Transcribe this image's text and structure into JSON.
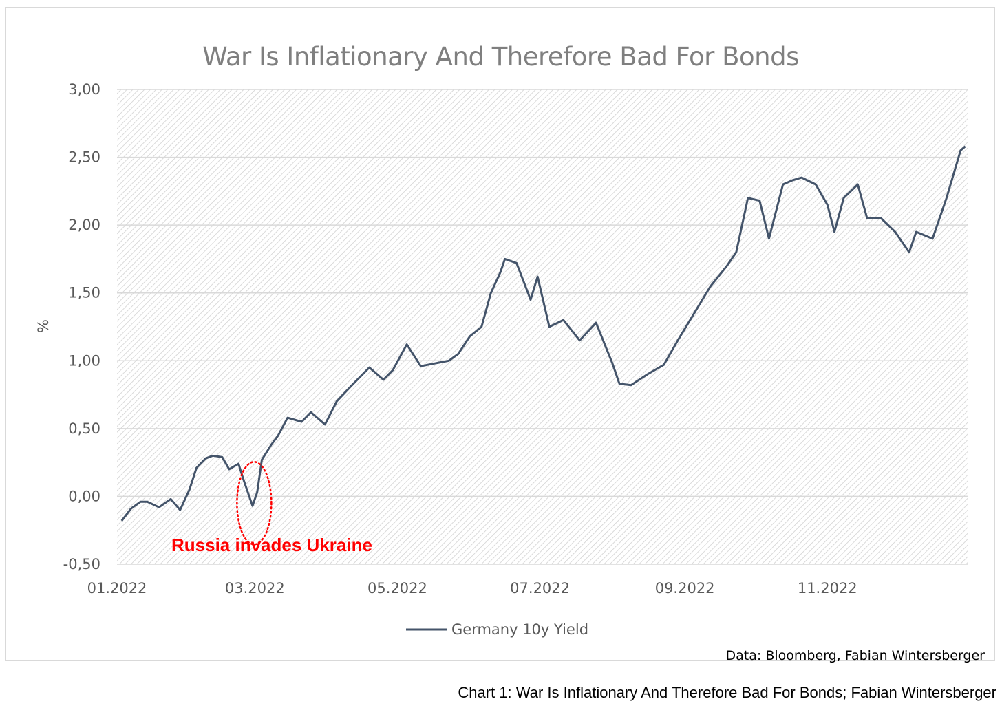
{
  "chart_data": {
    "type": "line",
    "title": "War Is Inflationary And Therefore Bad For Bonds",
    "ylabel": "%",
    "xlabel": "",
    "ylim": [
      -0.5,
      3.0
    ],
    "yticks": [
      "-0,50",
      "0,00",
      "0,50",
      "1,00",
      "1,50",
      "2,00",
      "2,50",
      "3,00"
    ],
    "ytick_values": [
      -0.5,
      0,
      0.5,
      1.0,
      1.5,
      2.0,
      2.5,
      3.0
    ],
    "xticks": [
      "01.2022",
      "03.2022",
      "05.2022",
      "07.2022",
      "09.2022",
      "11.2022"
    ],
    "grid": true,
    "legend_position": "bottom",
    "series": [
      {
        "name": "Germany 10y Yield",
        "color": "#44546a",
        "x": [
          "2022-01-03",
          "2022-01-07",
          "2022-01-11",
          "2022-01-14",
          "2022-01-19",
          "2022-01-24",
          "2022-01-28",
          "2022-02-01",
          "2022-02-04",
          "2022-02-08",
          "2022-02-11",
          "2022-02-15",
          "2022-02-18",
          "2022-02-22",
          "2022-02-24",
          "2022-02-28",
          "2022-03-02",
          "2022-03-04",
          "2022-03-08",
          "2022-03-11",
          "2022-03-15",
          "2022-03-21",
          "2022-03-25",
          "2022-03-31",
          "2022-04-05",
          "2022-04-11",
          "2022-04-19",
          "2022-04-25",
          "2022-04-29",
          "2022-05-05",
          "2022-05-11",
          "2022-05-17",
          "2022-05-23",
          "2022-05-27",
          "2022-06-01",
          "2022-06-06",
          "2022-06-10",
          "2022-06-14",
          "2022-06-16",
          "2022-06-21",
          "2022-06-27",
          "2022-06-30",
          "2022-07-05",
          "2022-07-11",
          "2022-07-18",
          "2022-07-25",
          "2022-08-01",
          "2022-08-04",
          "2022-08-09",
          "2022-08-16",
          "2022-08-23",
          "2022-08-29",
          "2022-09-05",
          "2022-09-12",
          "2022-09-19",
          "2022-09-23",
          "2022-09-28",
          "2022-10-03",
          "2022-10-07",
          "2022-10-13",
          "2022-10-17",
          "2022-10-21",
          "2022-10-27",
          "2022-11-01",
          "2022-11-04",
          "2022-11-08",
          "2022-11-14",
          "2022-11-18",
          "2022-11-24",
          "2022-11-30",
          "2022-12-06",
          "2022-12-09",
          "2022-12-16",
          "2022-12-22",
          "2022-12-28",
          "2022-12-30"
        ],
        "values": [
          -0.18,
          -0.09,
          -0.04,
          -0.04,
          -0.08,
          -0.02,
          -0.1,
          0.05,
          0.21,
          0.28,
          0.3,
          0.29,
          0.2,
          0.24,
          0.13,
          -0.07,
          0.03,
          0.27,
          0.38,
          0.45,
          0.58,
          0.55,
          0.62,
          0.53,
          0.7,
          0.81,
          0.95,
          0.86,
          0.93,
          1.12,
          0.96,
          0.98,
          1.0,
          1.05,
          1.18,
          1.25,
          1.5,
          1.65,
          1.75,
          1.72,
          1.45,
          1.62,
          1.25,
          1.3,
          1.15,
          1.28,
          0.98,
          0.83,
          0.82,
          0.9,
          0.97,
          1.15,
          1.35,
          1.55,
          1.7,
          1.8,
          2.2,
          2.18,
          1.9,
          2.3,
          2.33,
          2.35,
          2.3,
          2.15,
          1.95,
          2.2,
          2.3,
          2.05,
          2.05,
          1.95,
          1.8,
          1.95,
          1.9,
          2.2,
          2.55,
          2.58
        ]
      }
    ]
  },
  "annotation": {
    "text": "Russia invades Ukraine",
    "color": "#ff0000",
    "date": "2022-02-24"
  },
  "source_text": "Data: Bloomberg, Fabian Wintersberger",
  "caption": "Chart 1: War Is Inflationary And Therefore Bad For Bonds; Fabian Wintersberger"
}
